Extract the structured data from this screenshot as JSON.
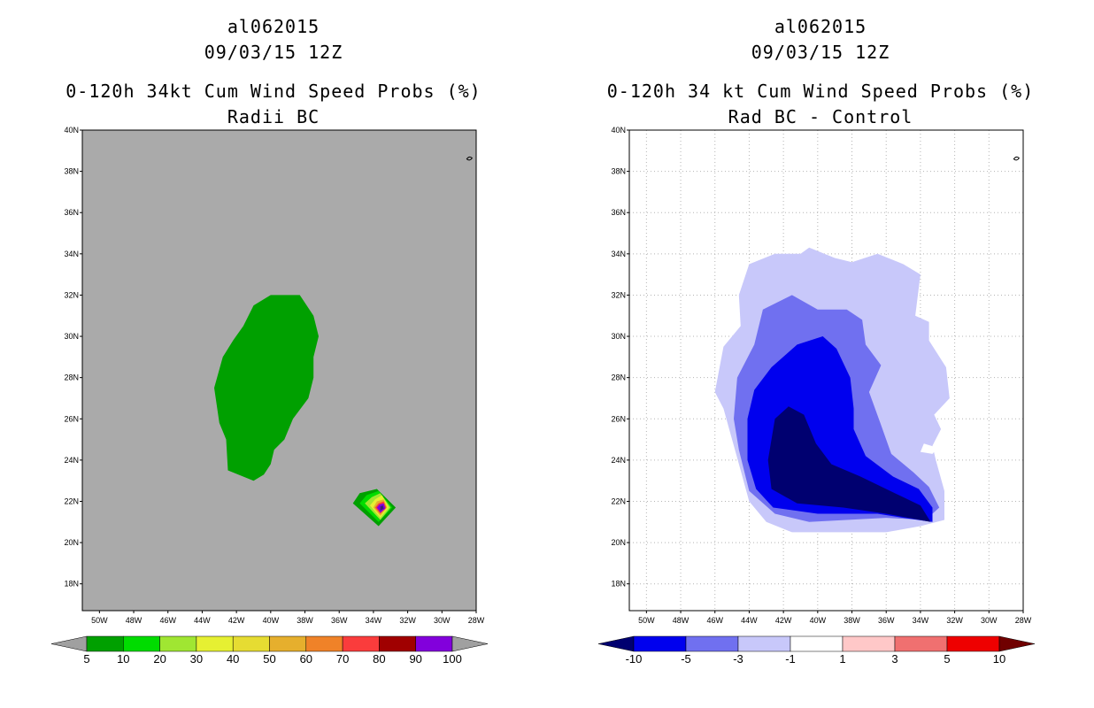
{
  "chart_data": [
    {
      "type": "map",
      "title_lines": [
        "al062015",
        "09/03/15 12Z",
        "0-120h 34kt Cum Wind Speed Probs (%)",
        "Radii BC"
      ],
      "lat_ticks": [
        "40N",
        "38N",
        "36N",
        "34N",
        "32N",
        "30N",
        "28N",
        "26N",
        "24N",
        "22N",
        "20N",
        "18N"
      ],
      "lon_ticks": [
        "50W",
        "48W",
        "46W",
        "44W",
        "42W",
        "40W",
        "38W",
        "36W",
        "34W",
        "32W",
        "30W",
        "28W"
      ],
      "lat_range": [
        16.7,
        40
      ],
      "lon_range": [
        -51,
        -28
      ],
      "grid": false,
      "colorbar": {
        "labels": [
          "5",
          "10",
          "20",
          "30",
          "40",
          "50",
          "60",
          "70",
          "80",
          "90",
          "100"
        ],
        "colors": [
          "#00a000",
          "#00dc00",
          "#a0e632",
          "#e6f032",
          "#e6dc32",
          "#e6af2d",
          "#f08228",
          "#fa3c3c",
          "#a00000",
          "#8200dc"
        ],
        "extend_colors": [
          "#a0a0a0",
          "#a0a0a0"
        ]
      },
      "regions": [
        {
          "level": "5-10",
          "color": "#00a000",
          "description": "large area",
          "lon_lat": [
            [
              -41.6,
              30.5
            ],
            [
              -41,
              31.5
            ],
            [
              -40,
              32
            ],
            [
              -38.3,
              32
            ],
            [
              -37.5,
              31
            ],
            [
              -37.2,
              30
            ],
            [
              -37.5,
              29
            ],
            [
              -37.5,
              28
            ],
            [
              -37.8,
              27
            ],
            [
              -38.7,
              26
            ],
            [
              -39.2,
              25
            ],
            [
              -39.8,
              24.5
            ],
            [
              -40,
              23.8
            ],
            [
              -40.4,
              23.3
            ],
            [
              -41,
              23
            ],
            [
              -42.5,
              23.5
            ],
            [
              -42.6,
              25
            ],
            [
              -43,
              25.8
            ],
            [
              -43.3,
              27.5
            ],
            [
              -42.8,
              29
            ],
            [
              -42.2,
              29.8
            ]
          ]
        },
        {
          "level": "5-10",
          "color": "#00a000",
          "lon_lat": [
            [
              -34.8,
              22.4
            ],
            [
              -33.8,
              22.6
            ],
            [
              -32.7,
              21.7
            ],
            [
              -33.7,
              20.8
            ],
            [
              -35.2,
              21.9
            ]
          ]
        },
        {
          "level": "10-20",
          "color": "#00dc00",
          "lon_lat": [
            [
              -34.4,
              22.3
            ],
            [
              -33.7,
              22.5
            ],
            [
              -32.9,
              21.7
            ],
            [
              -33.7,
              21.0
            ],
            [
              -34.8,
              21.9
            ]
          ]
        },
        {
          "level": "20-30",
          "color": "#a0e632",
          "lon_lat": [
            [
              -34.1,
              22.2
            ],
            [
              -33.6,
              22.4
            ],
            [
              -33.0,
              21.7
            ],
            [
              -33.6,
              21.1
            ],
            [
              -34.5,
              21.9
            ]
          ]
        },
        {
          "level": "30-40",
          "color": "#e6f032",
          "lon_lat": [
            [
              -33.9,
              22.1
            ],
            [
              -33.5,
              22.3
            ],
            [
              -33.1,
              21.7
            ],
            [
              -33.6,
              21.2
            ],
            [
              -34.2,
              21.8
            ]
          ]
        },
        {
          "level": "50-60",
          "color": "#e6af2d",
          "lon_lat": [
            [
              -33.8,
              22.0
            ],
            [
              -33.4,
              22.1
            ],
            [
              -33.2,
              21.7
            ],
            [
              -33.6,
              21.3
            ],
            [
              -34.0,
              21.7
            ]
          ]
        },
        {
          "level": "70-80",
          "color": "#fa3c3c",
          "lon_lat": [
            [
              -33.7,
              21.9
            ],
            [
              -33.4,
              22.0
            ],
            [
              -33.25,
              21.7
            ],
            [
              -33.6,
              21.4
            ],
            [
              -33.9,
              21.7
            ]
          ]
        },
        {
          "level": "90-100",
          "color": "#8200dc",
          "lon_lat": [
            [
              -33.65,
              21.85
            ],
            [
              -33.4,
              21.9
            ],
            [
              -33.3,
              21.65
            ],
            [
              -33.6,
              21.45
            ],
            [
              -33.8,
              21.7
            ]
          ]
        },
        {
          "level": ">100",
          "color": "#3c1e78",
          "lon_lat": [
            [
              -33.6,
              21.75
            ],
            [
              -33.45,
              21.8
            ],
            [
              -33.4,
              21.65
            ],
            [
              -33.6,
              21.55
            ]
          ]
        }
      ]
    },
    {
      "type": "map",
      "title_lines": [
        "al062015",
        "09/03/15 12Z",
        "0-120h 34 kt Cum Wind Speed Probs (%)",
        "Rad BC - Control"
      ],
      "lat_ticks": [
        "40N",
        "38N",
        "36N",
        "34N",
        "32N",
        "30N",
        "28N",
        "26N",
        "24N",
        "22N",
        "20N",
        "18N"
      ],
      "lon_ticks": [
        "50W",
        "48W",
        "46W",
        "44W",
        "42W",
        "40W",
        "38W",
        "36W",
        "34W",
        "32W",
        "30W",
        "28W"
      ],
      "lat_range": [
        16.7,
        40
      ],
      "lon_range": [
        -51,
        -28
      ],
      "grid": true,
      "colorbar": {
        "labels": [
          "-10",
          "-5",
          "-3",
          "-1",
          "1",
          "3",
          "5",
          "10"
        ],
        "colors": [
          "#0000ee",
          "#7070f0",
          "#c8c8fa",
          "#ffffff",
          "#ffc8c8",
          "#f07070",
          "#ee0000"
        ],
        "extend_colors": [
          "#000070",
          "#700000"
        ]
      },
      "regions": [
        {
          "level": "-3 to -1",
          "color": "#c8c8fa",
          "lon_lat": [
            [
              -45.5,
              29.5
            ],
            [
              -44.5,
              30.5
            ],
            [
              -44.6,
              32
            ],
            [
              -44,
              33.5
            ],
            [
              -42.5,
              34
            ],
            [
              -41,
              34
            ],
            [
              -40.5,
              34.3
            ],
            [
              -39,
              33.8
            ],
            [
              -38,
              33.6
            ],
            [
              -36.5,
              34
            ],
            [
              -35,
              33.5
            ],
            [
              -34,
              33
            ],
            [
              -34.3,
              31
            ],
            [
              -33.5,
              30.7
            ],
            [
              -33.5,
              29.8
            ],
            [
              -32.5,
              28.5
            ],
            [
              -32.3,
              27
            ],
            [
              -33.2,
              26.2
            ],
            [
              -32.8,
              25.5
            ],
            [
              -33.3,
              24.7
            ],
            [
              -33.1,
              24
            ],
            [
              -32.6,
              22.5
            ],
            [
              -32.6,
              21.1
            ],
            [
              -34,
              20.8
            ],
            [
              -36,
              20.5
            ],
            [
              -41.5,
              20.5
            ],
            [
              -43,
              21
            ],
            [
              -44,
              22
            ],
            [
              -44.5,
              23.5
            ],
            [
              -45,
              25
            ],
            [
              -45.5,
              26.5
            ],
            [
              -46,
              27.3
            ]
          ]
        },
        {
          "level": "-5 to -3",
          "color": "#7070f0",
          "lon_lat": [
            [
              -44.7,
              28
            ],
            [
              -43.7,
              29.6
            ],
            [
              -43.2,
              31.3
            ],
            [
              -41.5,
              32
            ],
            [
              -40,
              31.3
            ],
            [
              -38.3,
              31.3
            ],
            [
              -37.4,
              30.8
            ],
            [
              -37.2,
              29.6
            ],
            [
              -36.3,
              28.6
            ],
            [
              -37.0,
              27.3
            ],
            [
              -36.3,
              25.7
            ],
            [
              -35.7,
              24.3
            ],
            [
              -34.4,
              23.4
            ],
            [
              -33.5,
              22.7
            ],
            [
              -32.9,
              21.7
            ],
            [
              -33.7,
              21.1
            ],
            [
              -36,
              21.2
            ],
            [
              -40.5,
              21
            ],
            [
              -42.5,
              21.4
            ],
            [
              -44,
              22.5
            ],
            [
              -44.6,
              24.5
            ],
            [
              -44.9,
              26
            ]
          ]
        },
        {
          "level": "-10 to -5",
          "color": "#0000ee",
          "lon_lat": [
            [
              -44.1,
              26
            ],
            [
              -43.7,
              27.4
            ],
            [
              -42.7,
              28.5
            ],
            [
              -41.2,
              29.6
            ],
            [
              -39.7,
              30
            ],
            [
              -38.9,
              29.4
            ],
            [
              -38.1,
              28
            ],
            [
              -37.9,
              26.5
            ],
            [
              -37.9,
              25.5
            ],
            [
              -37.2,
              24.2
            ],
            [
              -35.6,
              23.2
            ],
            [
              -34.1,
              22.6
            ],
            [
              -33.3,
              21.7
            ],
            [
              -33.3,
              21.0
            ],
            [
              -35,
              21.2
            ],
            [
              -36.5,
              21.4
            ],
            [
              -40,
              21.4
            ],
            [
              -42.6,
              21.7
            ],
            [
              -43.6,
              22.6
            ],
            [
              -44.1,
              24
            ]
          ]
        },
        {
          "level": "< -10",
          "color": "#000070",
          "lon_lat": [
            [
              -42.5,
              26
            ],
            [
              -41.7,
              26.6
            ],
            [
              -40.8,
              26.2
            ],
            [
              -40.1,
              24.8
            ],
            [
              -39.2,
              23.8
            ],
            [
              -37.5,
              23.2
            ],
            [
              -35.5,
              22.4
            ],
            [
              -34.0,
              21.8
            ],
            [
              -33.4,
              21.0
            ],
            [
              -36,
              21.4
            ],
            [
              -38.5,
              21.7
            ],
            [
              -41.2,
              21.9
            ],
            [
              -42.7,
              22.6
            ],
            [
              -42.9,
              24
            ]
          ]
        },
        {
          "level": "-3 to -1 hole",
          "color": "#ffffff",
          "lon_lat": [
            [
              -33.8,
              24.8
            ],
            [
              -33.0,
              24.6
            ],
            [
              -33.3,
              24.3
            ],
            [
              -34.0,
              24.4
            ]
          ]
        }
      ]
    }
  ]
}
